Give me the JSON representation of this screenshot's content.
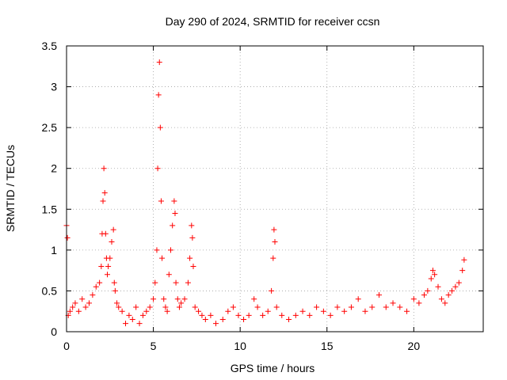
{
  "chart_data": {
    "type": "scatter",
    "title": "Day 290 of 2024, SRMTID for receiver ccsn",
    "xlabel": "GPS time / hours",
    "ylabel": "SRMTID / TECUs",
    "xlim": [
      0,
      24
    ],
    "ylim": [
      0,
      3.5
    ],
    "x_ticks": [
      0,
      5,
      10,
      15,
      20
    ],
    "x_tick_labels": [
      "0",
      "5",
      "10",
      "15",
      "20"
    ],
    "y_ticks": [
      0,
      0.5,
      1,
      1.5,
      2,
      2.5,
      3,
      3.5
    ],
    "y_tick_labels": [
      "0",
      "0.5",
      "1",
      "1.5",
      "2",
      "2.5",
      "3",
      "3.5"
    ],
    "grid": true,
    "marker": "+",
    "series": [
      {
        "name": "SRMTID",
        "color": "#ff0000",
        "x": [
          0.0,
          0.05,
          0.1,
          0.2,
          0.35,
          0.5,
          0.7,
          0.9,
          1.1,
          1.3,
          1.5,
          1.7,
          1.9,
          2.0,
          2.05,
          2.1,
          2.15,
          2.2,
          2.25,
          2.3,
          2.35,
          2.4,
          2.5,
          2.6,
          2.7,
          2.75,
          2.8,
          2.9,
          3.0,
          3.2,
          3.4,
          3.6,
          3.8,
          4.0,
          4.2,
          4.4,
          4.6,
          4.8,
          5.0,
          5.1,
          5.2,
          5.25,
          5.3,
          5.35,
          5.4,
          5.45,
          5.5,
          5.6,
          5.7,
          5.8,
          5.9,
          6.0,
          6.1,
          6.2,
          6.25,
          6.3,
          6.4,
          6.5,
          6.6,
          6.8,
          7.0,
          7.1,
          7.2,
          7.25,
          7.3,
          7.4,
          7.6,
          7.8,
          8.0,
          8.3,
          8.6,
          9.0,
          9.3,
          9.6,
          9.9,
          10.2,
          10.5,
          10.8,
          11.0,
          11.3,
          11.6,
          11.8,
          11.9,
          11.95,
          12.0,
          12.1,
          12.4,
          12.8,
          13.2,
          13.6,
          14.0,
          14.4,
          14.8,
          15.2,
          15.6,
          16.0,
          16.4,
          16.8,
          17.2,
          17.6,
          18.0,
          18.4,
          18.8,
          19.2,
          19.6,
          20.0,
          20.3,
          20.6,
          20.8,
          21.0,
          21.1,
          21.2,
          21.4,
          21.6,
          21.8,
          22.0,
          22.2,
          22.4,
          22.6,
          22.8,
          22.9
        ],
        "values": [
          1.3,
          1.15,
          0.2,
          0.25,
          0.3,
          0.35,
          0.25,
          0.4,
          0.3,
          0.35,
          0.45,
          0.55,
          0.6,
          0.8,
          1.2,
          1.6,
          2.0,
          1.7,
          1.2,
          0.9,
          0.7,
          0.8,
          0.9,
          1.1,
          1.25,
          0.6,
          0.5,
          0.35,
          0.3,
          0.25,
          0.1,
          0.2,
          0.15,
          0.3,
          0.1,
          0.2,
          0.25,
          0.3,
          0.4,
          0.6,
          1.0,
          2.0,
          2.9,
          3.3,
          2.5,
          1.6,
          0.9,
          0.4,
          0.3,
          0.25,
          0.7,
          1.0,
          1.3,
          1.6,
          1.45,
          0.6,
          0.4,
          0.3,
          0.35,
          0.4,
          0.6,
          0.9,
          1.3,
          1.15,
          0.8,
          0.3,
          0.25,
          0.2,
          0.15,
          0.2,
          0.1,
          0.15,
          0.25,
          0.3,
          0.2,
          0.15,
          0.2,
          0.4,
          0.3,
          0.2,
          0.25,
          0.5,
          0.9,
          1.25,
          1.1,
          0.3,
          0.2,
          0.15,
          0.2,
          0.25,
          0.2,
          0.3,
          0.25,
          0.2,
          0.3,
          0.25,
          0.3,
          0.4,
          0.25,
          0.3,
          0.45,
          0.3,
          0.35,
          0.3,
          0.25,
          0.4,
          0.35,
          0.45,
          0.5,
          0.65,
          0.75,
          0.7,
          0.55,
          0.4,
          0.35,
          0.45,
          0.5,
          0.55,
          0.6,
          0.75,
          0.88
        ]
      }
    ]
  }
}
